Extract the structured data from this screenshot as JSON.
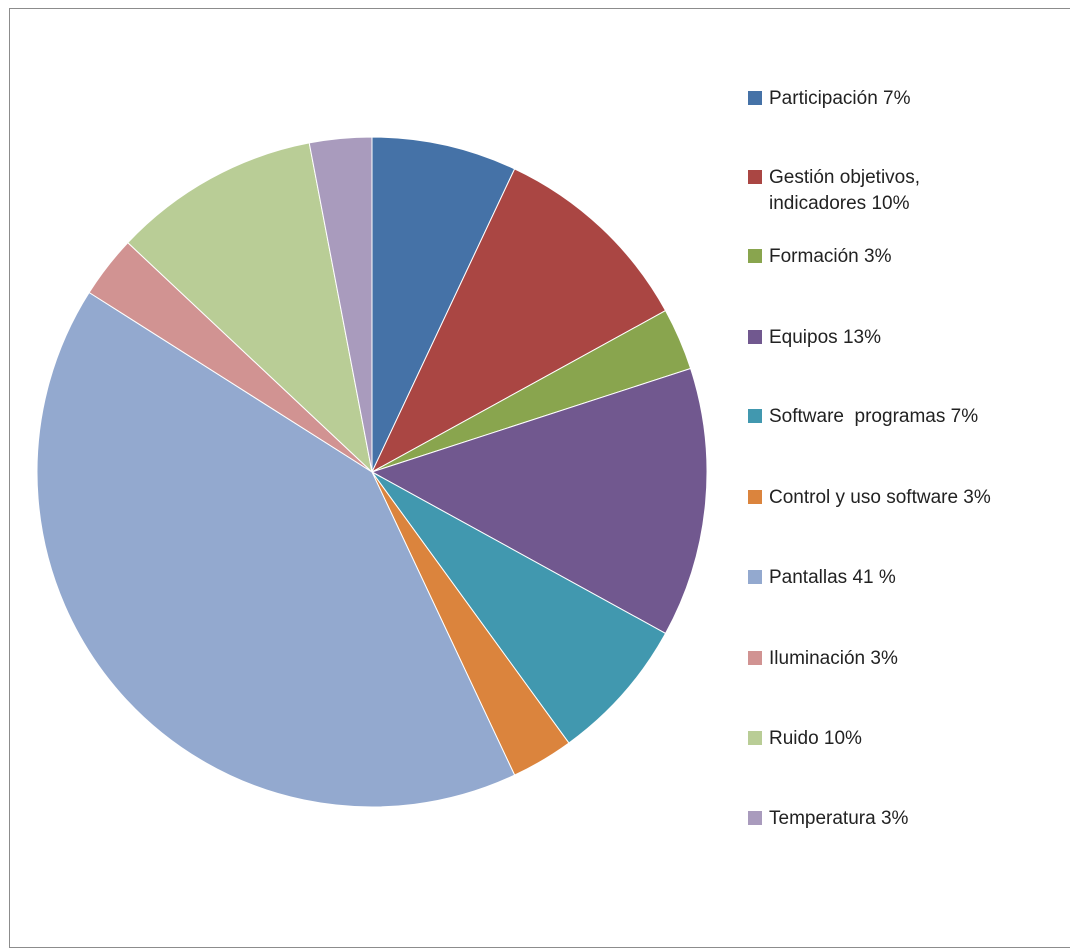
{
  "chart_data": {
    "type": "pie",
    "title": "",
    "slices": [
      {
        "label": "Participación 7%",
        "value": 7,
        "color": "#4572A7"
      },
      {
        "label": "Gestión objetivos,\nindicadores 10%",
        "value": 10,
        "color": "#AA4643"
      },
      {
        "label": "Formación 3%",
        "value": 3,
        "color": "#89A54E"
      },
      {
        "label": "Equipos 13%",
        "value": 13,
        "color": "#71588F"
      },
      {
        "label": "Software  programas 7%",
        "value": 7,
        "color": "#4198AF"
      },
      {
        "label": "Control y uso software 3%",
        "value": 3,
        "color": "#DB843D"
      },
      {
        "label": "Pantallas 41 %",
        "value": 41,
        "color": "#93A9CF"
      },
      {
        "label": "Iluminación 3%",
        "value": 3,
        "color": "#D19392"
      },
      {
        "label": "Ruido 10%",
        "value": 10,
        "color": "#B9CD96"
      },
      {
        "label": "Temperatura 3%",
        "value": 3,
        "color": "#A99BBD"
      }
    ],
    "legend_position": "right",
    "start_angle": "top",
    "direction": "clockwise"
  }
}
